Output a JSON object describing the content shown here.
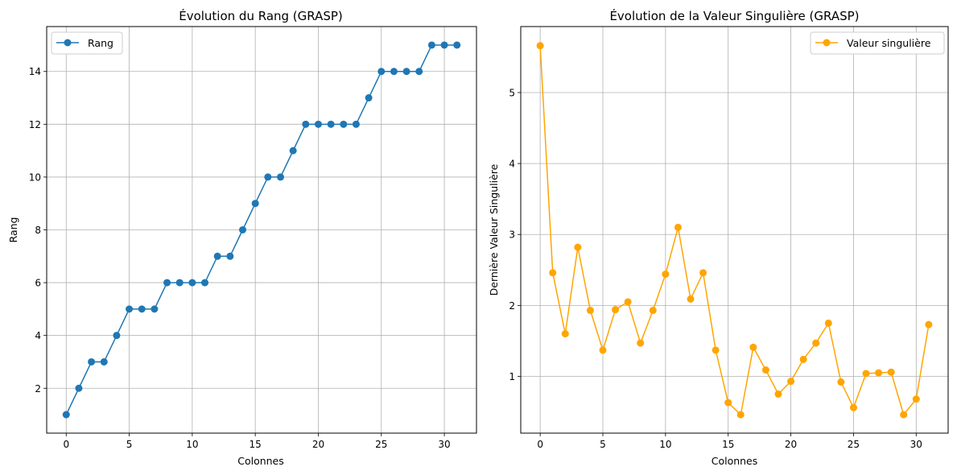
{
  "chart_data": [
    {
      "type": "line",
      "title": "Évolution du Rang (GRASP)",
      "xlabel": "Colonnes",
      "ylabel": "Rang",
      "xlim": [
        -1.55,
        32.55
      ],
      "ylim": [
        0.3,
        15.7
      ],
      "xticks": [
        0,
        5,
        10,
        15,
        20,
        25,
        30
      ],
      "yticks": [
        2,
        4,
        6,
        8,
        10,
        12,
        14
      ],
      "grid": true,
      "legend_position": "top-left",
      "x": [
        0,
        1,
        2,
        3,
        4,
        5,
        6,
        7,
        8,
        9,
        10,
        11,
        12,
        13,
        14,
        15,
        16,
        17,
        18,
        19,
        20,
        21,
        22,
        23,
        24,
        25,
        26,
        27,
        28,
        29,
        30,
        31
      ],
      "series": [
        {
          "name": "Rang",
          "color": "#1f77b4",
          "values": [
            1,
            2,
            3,
            3,
            4,
            5,
            5,
            5,
            6,
            6,
            6,
            6,
            7,
            7,
            8,
            9,
            10,
            10,
            11,
            12,
            12,
            12,
            12,
            12,
            13,
            14,
            14,
            14,
            14,
            15,
            15,
            15
          ]
        }
      ]
    },
    {
      "type": "line",
      "title": "Évolution de la Valeur Singulière (GRASP)",
      "xlabel": "Colonnes",
      "ylabel": "Dernière Valeur Singulière",
      "xlim": [
        -1.55,
        32.55
      ],
      "ylim": [
        0.2,
        5.93
      ],
      "xticks": [
        0,
        5,
        10,
        15,
        20,
        25,
        30
      ],
      "yticks": [
        1,
        2,
        3,
        4,
        5
      ],
      "grid": true,
      "legend_position": "top-right",
      "x": [
        0,
        1,
        2,
        3,
        4,
        5,
        6,
        7,
        8,
        9,
        10,
        11,
        12,
        13,
        14,
        15,
        16,
        17,
        18,
        19,
        20,
        21,
        22,
        23,
        24,
        25,
        26,
        27,
        28,
        29,
        30,
        31
      ],
      "series": [
        {
          "name": "Valeur singulière",
          "color": "#ffa500",
          "values": [
            5.66,
            2.46,
            1.6,
            2.82,
            1.93,
            1.37,
            1.94,
            2.05,
            1.47,
            1.93,
            2.44,
            3.1,
            2.09,
            2.46,
            1.37,
            0.63,
            0.46,
            1.41,
            1.09,
            0.75,
            0.93,
            1.24,
            1.47,
            1.75,
            0.92,
            0.56,
            1.04,
            1.05,
            1.06,
            0.46,
            0.68,
            1.73
          ]
        }
      ]
    }
  ]
}
